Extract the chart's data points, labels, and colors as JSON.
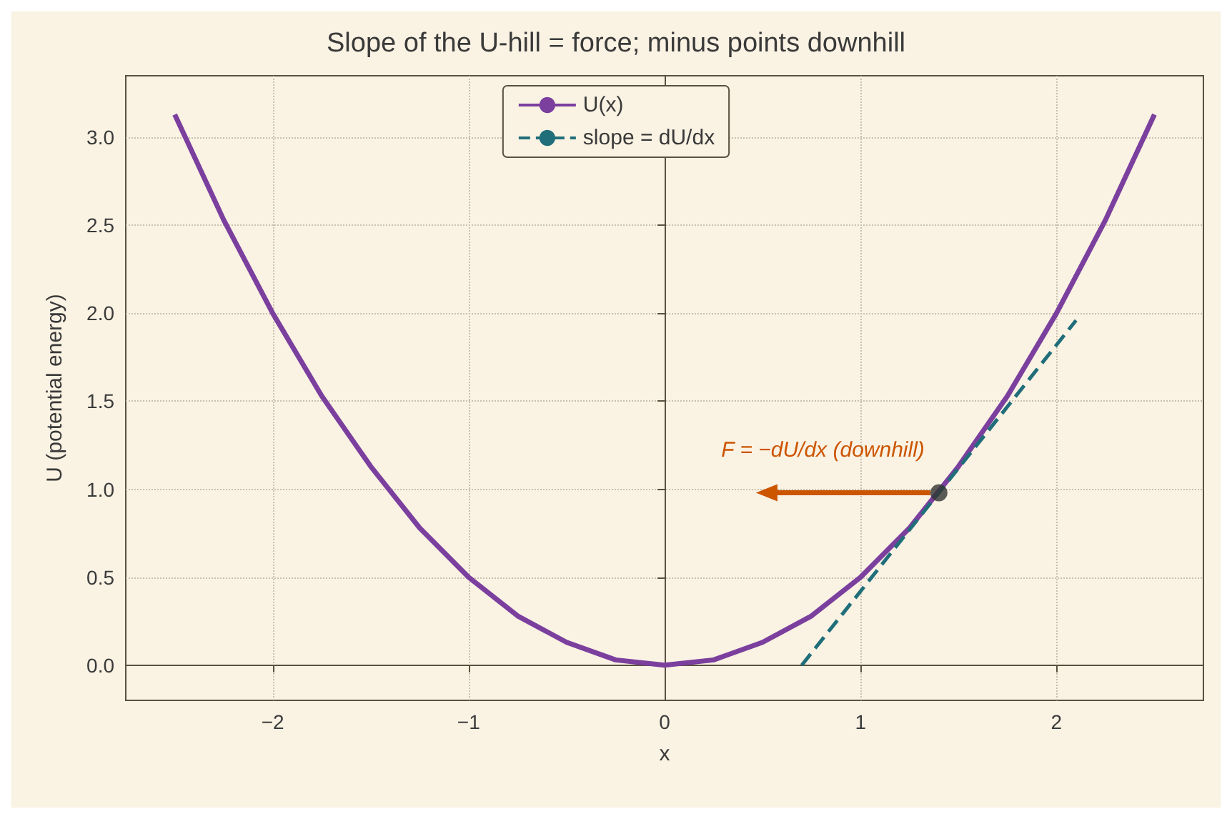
{
  "chart_data": {
    "type": "line",
    "title": "Slope of the U-hill = force; minus points downhill",
    "xlabel": "x",
    "ylabel": "U (potential energy)",
    "xlim": [
      -2.75,
      2.75
    ],
    "ylim": [
      -0.2,
      3.35
    ],
    "xticks": [
      {
        "value": -2,
        "label": "−2"
      },
      {
        "value": -1,
        "label": "−1"
      },
      0,
      1,
      2
    ],
    "yticks": [
      {
        "value": 0,
        "label": "0.0"
      },
      0.5,
      {
        "value": 1,
        "label": "1.0"
      },
      1.5,
      {
        "value": 2,
        "label": "2.0"
      },
      2.5,
      {
        "value": 3,
        "label": "3.0"
      }
    ],
    "grid": true,
    "legend": "top",
    "line_style": "solid",
    "series": [
      {
        "name": "U(x)",
        "color": "#7b3f9e",
        "x": [
          -2.5,
          -2.25,
          -2,
          -1.75,
          -1.5,
          -1.25,
          -1,
          -0.75,
          -0.5,
          -0.25,
          0,
          0.25,
          0.5,
          0.75,
          1,
          1.25,
          1.5,
          1.75,
          2,
          2.25,
          2.5
        ],
        "values": [
          3.13,
          2.53,
          2,
          1.53,
          1.13,
          0.78,
          0.5,
          0.28,
          0.13,
          0.03,
          0,
          0.03,
          0.13,
          0.28,
          0.5,
          0.78,
          1.13,
          1.53,
          2,
          2.53,
          3.13
        ]
      },
      {
        "name": "slope = dU/dx",
        "color": "#1f6e7a",
        "line_style": "dashed",
        "x": [
          0.7,
          2.1
        ],
        "values": [
          0,
          1.96
        ]
      },
      {
        "type": "scatter",
        "color": "#333333",
        "marker": "circle",
        "x": [
          1.4
        ],
        "values": [
          0.98
        ]
      }
    ],
    "annotations": [
      {
        "text": "F = −dU/dx (downhill)",
        "x": 1.4,
        "y": 0.98
      }
    ]
  }
}
